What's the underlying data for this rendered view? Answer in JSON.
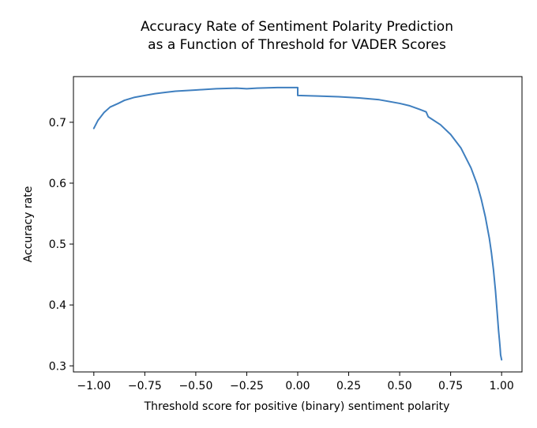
{
  "chart_data": {
    "type": "line",
    "title": [
      "Accuracy Rate of Sentiment Polarity Prediction",
      "as a Function of Threshold for VADER Scores"
    ],
    "xlabel": "Threshold score for positive (binary) sentiment polarity",
    "ylabel": "Accuracy rate",
    "xlim": [
      -1.1,
      1.1
    ],
    "ylim": [
      0.29,
      0.775
    ],
    "xticks": [
      -1.0,
      -0.75,
      -0.5,
      -0.25,
      0.0,
      0.25,
      0.5,
      0.75,
      1.0
    ],
    "xtick_labels": [
      "−1.00",
      "−0.75",
      "−0.50",
      "−0.25",
      "0.00",
      "0.25",
      "0.50",
      "0.75",
      "1.00"
    ],
    "yticks": [
      0.3,
      0.4,
      0.5,
      0.6,
      0.7
    ],
    "ytick_labels": [
      "0.3",
      "0.4",
      "0.5",
      "0.6",
      "0.7"
    ],
    "grid": false,
    "color": "#3f7fbf",
    "series": [
      {
        "x": [
          -1.0,
          -0.98,
          -0.95,
          -0.92,
          -0.88,
          -0.85,
          -0.8,
          -0.75,
          -0.7,
          -0.65,
          -0.6,
          -0.5,
          -0.4,
          -0.3,
          -0.25,
          -0.2,
          -0.1,
          0.0,
          0.0,
          0.1,
          0.2,
          0.3,
          0.4,
          0.5,
          0.55,
          0.6,
          0.63,
          0.64,
          0.7,
          0.75,
          0.8,
          0.85,
          0.88,
          0.9,
          0.92,
          0.94,
          0.95,
          0.96,
          0.97,
          0.98,
          0.985,
          0.99,
          0.993,
          0.995,
          1.0
        ],
        "y": [
          0.69,
          0.703,
          0.716,
          0.725,
          0.731,
          0.736,
          0.741,
          0.744,
          0.747,
          0.749,
          0.751,
          0.753,
          0.755,
          0.756,
          0.755,
          0.756,
          0.757,
          0.757,
          0.744,
          0.743,
          0.742,
          0.74,
          0.737,
          0.731,
          0.727,
          0.721,
          0.717,
          0.709,
          0.696,
          0.68,
          0.658,
          0.625,
          0.598,
          0.574,
          0.545,
          0.509,
          0.486,
          0.458,
          0.423,
          0.38,
          0.358,
          0.34,
          0.328,
          0.318,
          0.31
        ]
      }
    ]
  }
}
